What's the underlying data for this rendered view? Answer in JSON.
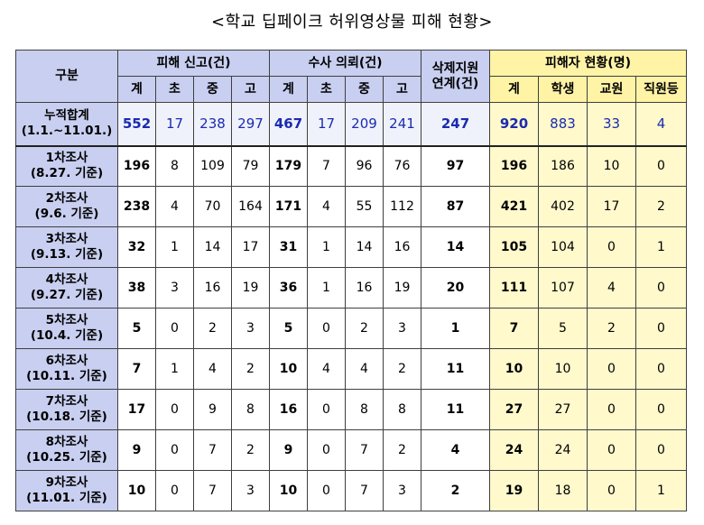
{
  "title": "<학교 딥페이크 허위영상물 피해 현황>",
  "headers": {
    "category": "구분",
    "report_group": "피해 신고(건)",
    "investigation_group": "수사 의뢰(건)",
    "deletion_group": "삭제지원\n연계(건)",
    "victims_group": "피해자 현황(명)",
    "sub": {
      "total": "계",
      "elementary": "초",
      "middle": "중",
      "high": "고",
      "student": "학생",
      "teacher": "교원",
      "staff": "직원등"
    }
  },
  "rows": [
    {
      "label": "누적합계",
      "period": "(1.1.~11.01.)",
      "report": [
        "552",
        "17",
        "238",
        "297"
      ],
      "investigation": [
        "467",
        "17",
        "209",
        "241"
      ],
      "deletion": "247",
      "victims": [
        "920",
        "883",
        "33",
        "4"
      ]
    },
    {
      "label": "1차조사",
      "period": "(8.27. 기준)",
      "report": [
        "196",
        "8",
        "109",
        "79"
      ],
      "investigation": [
        "179",
        "7",
        "96",
        "76"
      ],
      "deletion": "97",
      "victims": [
        "196",
        "186",
        "10",
        "0"
      ]
    },
    {
      "label": "2차조사",
      "period": "(9.6. 기준)",
      "report": [
        "238",
        "4",
        "70",
        "164"
      ],
      "investigation": [
        "171",
        "4",
        "55",
        "112"
      ],
      "deletion": "87",
      "victims": [
        "421",
        "402",
        "17",
        "2"
      ]
    },
    {
      "label": "3차조사",
      "period": "(9.13. 기준)",
      "report": [
        "32",
        "1",
        "14",
        "17"
      ],
      "investigation": [
        "31",
        "1",
        "14",
        "16"
      ],
      "deletion": "14",
      "victims": [
        "105",
        "104",
        "0",
        "1"
      ]
    },
    {
      "label": "4차조사",
      "period": "(9.27. 기준)",
      "report": [
        "38",
        "3",
        "16",
        "19"
      ],
      "investigation": [
        "36",
        "1",
        "16",
        "19"
      ],
      "deletion": "20",
      "victims": [
        "111",
        "107",
        "4",
        "0"
      ]
    },
    {
      "label": "5차조사",
      "period": "(10.4. 기준)",
      "report": [
        "5",
        "0",
        "2",
        "3"
      ],
      "investigation": [
        "5",
        "0",
        "2",
        "3"
      ],
      "deletion": "1",
      "victims": [
        "7",
        "5",
        "2",
        "0"
      ]
    },
    {
      "label": "6차조사",
      "period": "(10.11. 기준)",
      "report": [
        "7",
        "1",
        "4",
        "2"
      ],
      "investigation": [
        "10",
        "4",
        "4",
        "2"
      ],
      "deletion": "11",
      "victims": [
        "10",
        "10",
        "0",
        "0"
      ]
    },
    {
      "label": "7차조사",
      "period": "(10.18. 기준)",
      "report": [
        "17",
        "0",
        "9",
        "8"
      ],
      "investigation": [
        "16",
        "0",
        "8",
        "8"
      ],
      "deletion": "11",
      "victims": [
        "27",
        "27",
        "0",
        "0"
      ]
    },
    {
      "label": "8차조사",
      "period": "(10.25. 기준)",
      "report": [
        "9",
        "0",
        "7",
        "2"
      ],
      "investigation": [
        "9",
        "0",
        "7",
        "2"
      ],
      "deletion": "4",
      "victims": [
        "24",
        "24",
        "0",
        "0"
      ]
    },
    {
      "label": "9차조사",
      "period": "(11.01. 기준)",
      "report": [
        "10",
        "0",
        "7",
        "3"
      ],
      "investigation": [
        "10",
        "0",
        "7",
        "3"
      ],
      "deletion": "2",
      "victims": [
        "19",
        "18",
        "0",
        "1"
      ]
    }
  ],
  "colors": {
    "header_bg": "#c9cff0",
    "victim_header_bg": "#fff3a6",
    "victim_cell_bg": "#fff9cc",
    "cumulative_text": "#1a2bb0"
  }
}
